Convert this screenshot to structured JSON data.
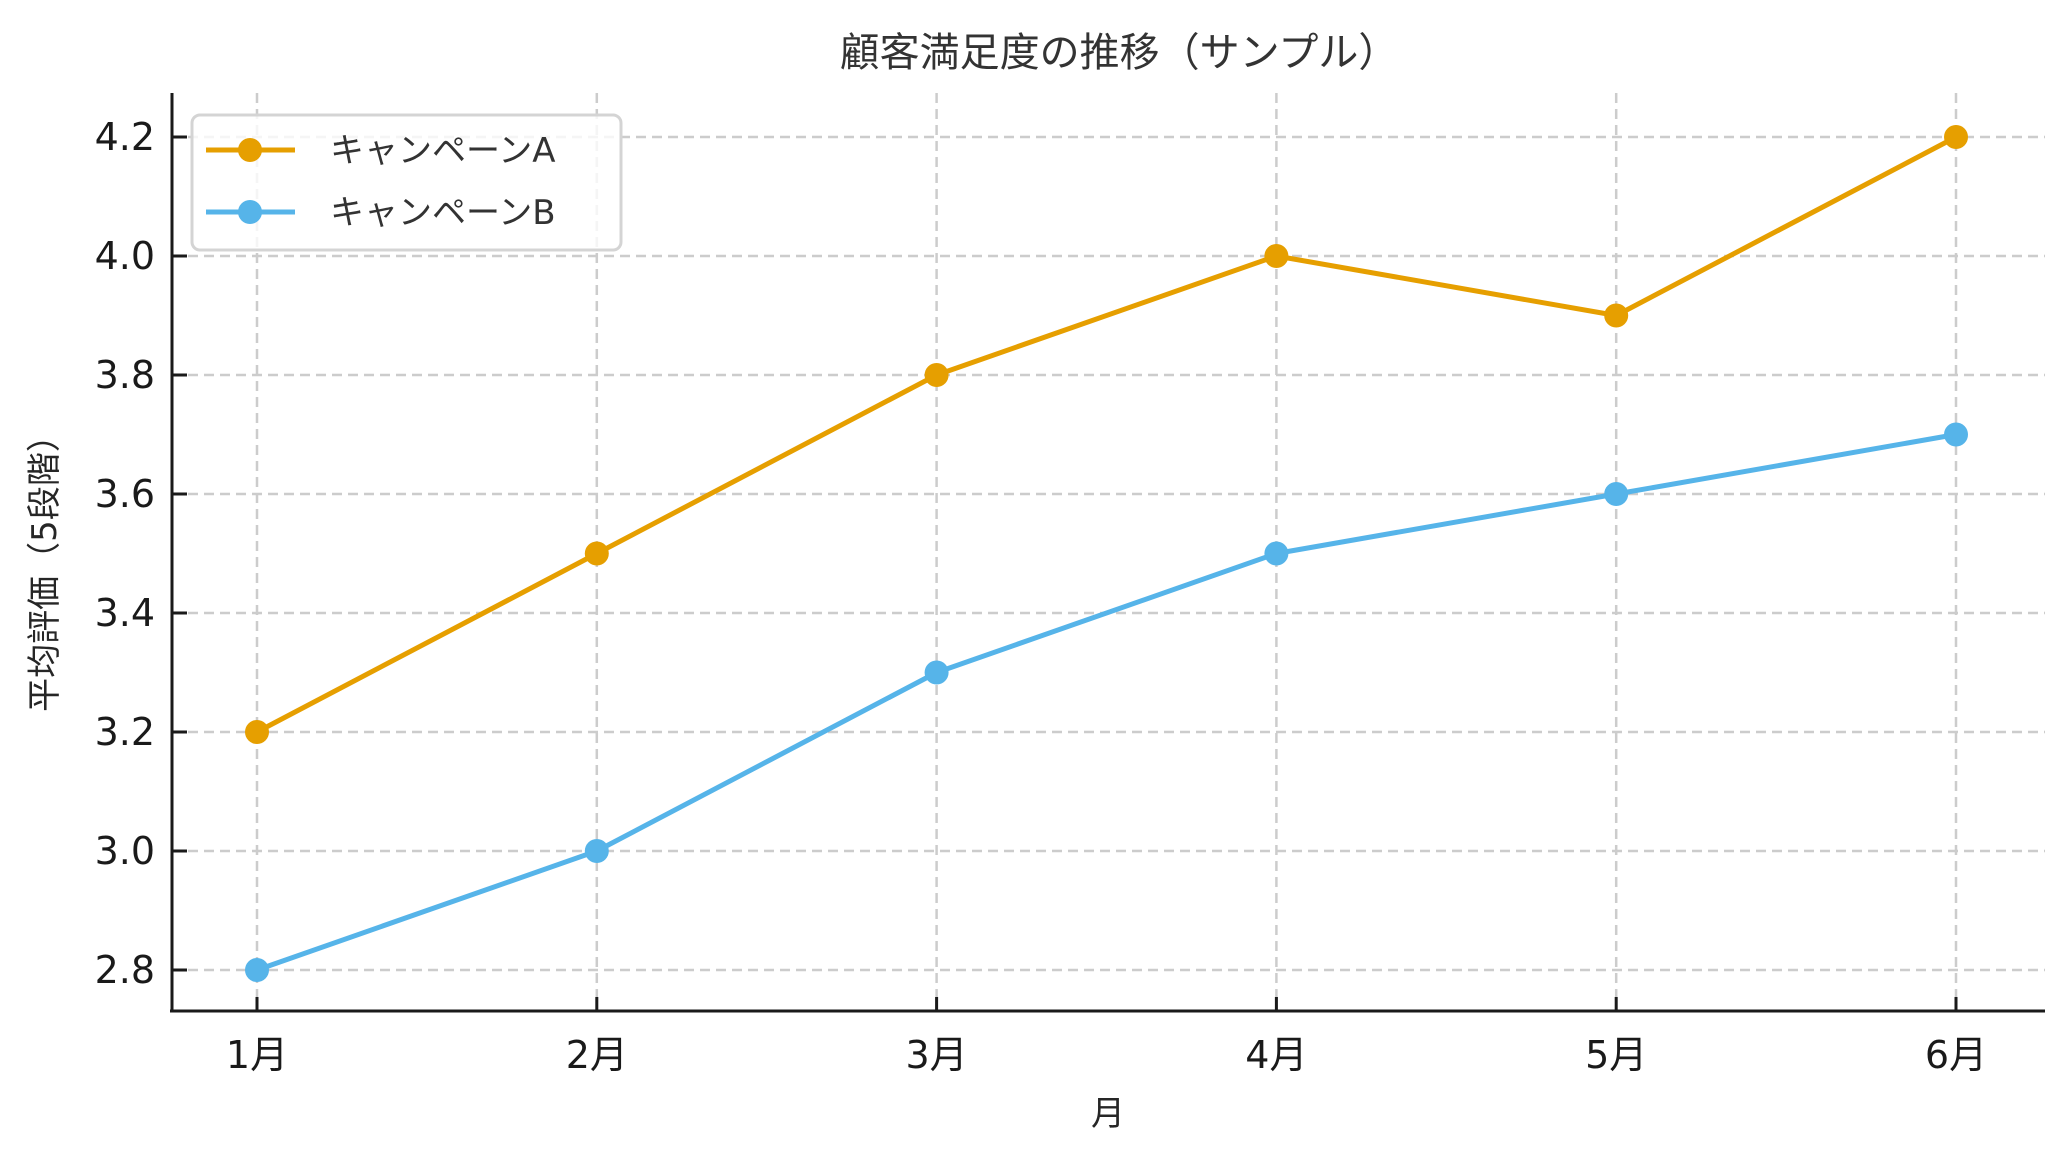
{
  "chart_data": {
    "type": "line",
    "title": "顧客満足度の推移（サンプル）",
    "xlabel": "月",
    "ylabel": "平均評価（5段階）",
    "categories": [
      "1月",
      "2月",
      "3月",
      "4月",
      "5月",
      "6月"
    ],
    "series": [
      {
        "name": "キャンペーンA",
        "color": "#E69F00",
        "values": [
          3.2,
          3.5,
          3.8,
          4.0,
          3.9,
          4.2
        ]
      },
      {
        "name": "キャンペーンB",
        "color": "#56B4E9",
        "values": [
          2.8,
          3.0,
          3.3,
          3.5,
          3.6,
          3.7
        ]
      }
    ],
    "yticks": [
      "2.8",
      "3.0",
      "3.2",
      "3.4",
      "3.6",
      "3.8",
      "4.0",
      "4.2"
    ],
    "ylim": [
      2.73,
      4.27
    ],
    "grid": true,
    "legend_position": "upper left"
  }
}
